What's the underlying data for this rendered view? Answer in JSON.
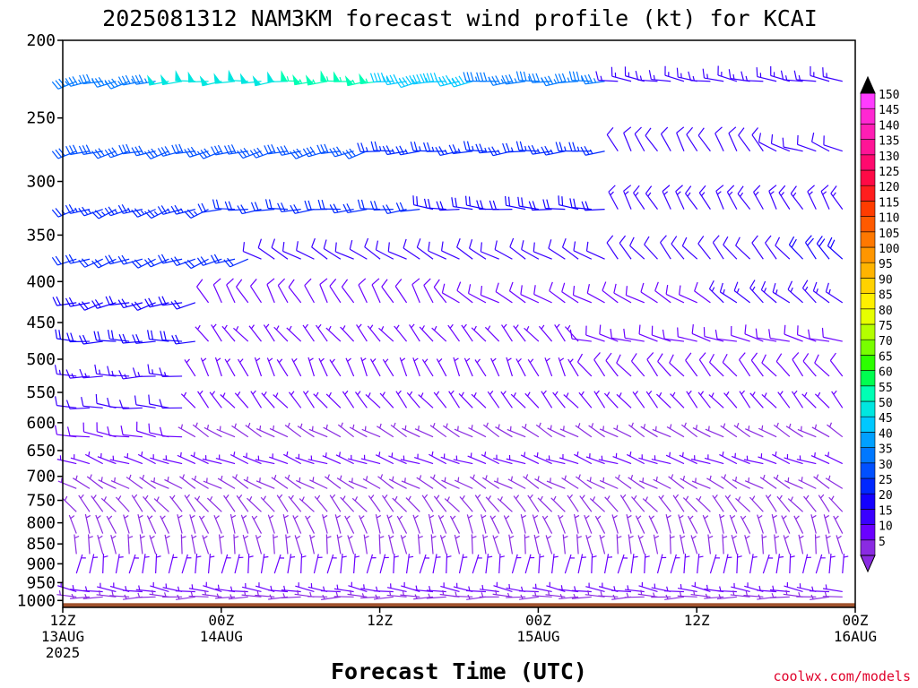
{
  "chart_data": {
    "type": "wind_barb_profile",
    "title": "2025081312 NAM3KM forecast wind profile (kt) for KCAI",
    "xlabel": "Forecast Time (UTC)",
    "ylabel": "",
    "credit": "coolwx.com/models",
    "y_axis": {
      "unit": "hPa",
      "reversed": true,
      "log_scale": true,
      "range": [
        1020,
        200
      ],
      "ticks": [
        200,
        250,
        300,
        350,
        400,
        450,
        500,
        550,
        600,
        650,
        700,
        750,
        800,
        850,
        900,
        950,
        1000
      ]
    },
    "x_axis": {
      "range_hours": [
        0,
        60
      ],
      "ticks": [
        {
          "hour": 0,
          "line1": "12Z",
          "line2": "13AUG",
          "line3": "2025"
        },
        {
          "hour": 12,
          "line1": "00Z",
          "line2": "14AUG",
          "line3": ""
        },
        {
          "hour": 24,
          "line1": "12Z",
          "line2": "",
          "line3": ""
        },
        {
          "hour": 36,
          "line1": "00Z",
          "line2": "15AUG",
          "line3": ""
        },
        {
          "hour": 48,
          "line1": "12Z",
          "line2": "",
          "line3": ""
        },
        {
          "hour": 60,
          "line1": "00Z",
          "line2": "16AUG",
          "line3": ""
        }
      ]
    },
    "colorbar": {
      "levels": [
        5,
        10,
        15,
        20,
        25,
        30,
        35,
        40,
        45,
        50,
        55,
        60,
        65,
        70,
        75,
        80,
        85,
        90,
        95,
        100,
        105,
        110,
        115,
        120,
        125,
        130,
        135,
        140,
        145,
        150
      ],
      "colors": [
        "#8a2be2",
        "#6a00ff",
        "#3a00ff",
        "#1400ff",
        "#0028ff",
        "#0050ff",
        "#0078ff",
        "#00a0ff",
        "#00c8ff",
        "#00e6e0",
        "#00ffb4",
        "#00ff50",
        "#2cff00",
        "#78ff00",
        "#b4ff00",
        "#e6ff00",
        "#fff000",
        "#ffd200",
        "#ffb400",
        "#ff9600",
        "#ff7800",
        "#ff5a00",
        "#ff3c00",
        "#ff1e1e",
        "#ff0a46",
        "#ff0a6e",
        "#ff1496",
        "#ff1eb4",
        "#ff28d2",
        "#ff3cff"
      ]
    },
    "ground_color": "#a0522d",
    "levels_hpa": [
      225,
      275,
      325,
      375,
      425,
      475,
      525,
      575,
      625,
      675,
      725,
      775,
      825,
      875,
      925,
      975,
      1000
    ],
    "wind_profile": [
      {
        "hpa": 225,
        "segments": [
          {
            "h0": 0,
            "h1": 8,
            "dir": 255,
            "spd": 35
          },
          {
            "h0": 8,
            "h1": 18,
            "dir": 265,
            "spd": 50
          },
          {
            "h0": 18,
            "h1": 25,
            "dir": 265,
            "spd": 55
          },
          {
            "h0": 25,
            "h1": 32,
            "dir": 260,
            "spd": 45
          },
          {
            "h0": 32,
            "h1": 42,
            "dir": 265,
            "spd": 35
          },
          {
            "h0": 42,
            "h1": 61,
            "dir": 280,
            "spd": 15
          }
        ]
      },
      {
        "hpa": 275,
        "segments": [
          {
            "h0": 0,
            "h1": 24,
            "dir": 255,
            "spd": 30
          },
          {
            "h0": 24,
            "h1": 42,
            "dir": 265,
            "spd": 25
          },
          {
            "h0": 42,
            "h1": 54,
            "dir": 330,
            "spd": 12
          },
          {
            "h0": 54,
            "h1": 61,
            "dir": 290,
            "spd": 12
          }
        ]
      },
      {
        "hpa": 325,
        "segments": [
          {
            "h0": 0,
            "h1": 12,
            "dir": 250,
            "spd": 25
          },
          {
            "h0": 12,
            "h1": 28,
            "dir": 265,
            "spd": 22
          },
          {
            "h0": 28,
            "h1": 42,
            "dir": 275,
            "spd": 20
          },
          {
            "h0": 42,
            "h1": 61,
            "dir": 330,
            "spd": 15
          }
        ]
      },
      {
        "hpa": 375,
        "segments": [
          {
            "h0": 0,
            "h1": 15,
            "dir": 250,
            "spd": 22
          },
          {
            "h0": 15,
            "h1": 42,
            "dir": 300,
            "spd": 12
          },
          {
            "h0": 42,
            "h1": 56,
            "dir": 320,
            "spd": 12
          },
          {
            "h0": 56,
            "h1": 61,
            "dir": 320,
            "spd": 18
          }
        ]
      },
      {
        "hpa": 425,
        "segments": [
          {
            "h0": 0,
            "h1": 11,
            "dir": 255,
            "spd": 20
          },
          {
            "h0": 11,
            "h1": 30,
            "dir": 330,
            "spd": 8
          },
          {
            "h0": 30,
            "h1": 50,
            "dir": 300,
            "spd": 10
          },
          {
            "h0": 50,
            "h1": 61,
            "dir": 310,
            "spd": 15
          }
        ]
      },
      {
        "hpa": 475,
        "segments": [
          {
            "h0": 0,
            "h1": 11,
            "dir": 270,
            "spd": 20
          },
          {
            "h0": 11,
            "h1": 40,
            "dir": 320,
            "spd": 7
          },
          {
            "h0": 40,
            "h1": 61,
            "dir": 285,
            "spd": 10
          }
        ]
      },
      {
        "hpa": 525,
        "segments": [
          {
            "h0": 0,
            "h1": 10,
            "dir": 270,
            "spd": 15
          },
          {
            "h0": 10,
            "h1": 40,
            "dir": 335,
            "spd": 6
          },
          {
            "h0": 40,
            "h1": 61,
            "dir": 320,
            "spd": 8
          }
        ]
      },
      {
        "hpa": 575,
        "segments": [
          {
            "h0": 0,
            "h1": 10,
            "dir": 275,
            "spd": 12
          },
          {
            "h0": 10,
            "h1": 61,
            "dir": 320,
            "spd": 6
          }
        ]
      },
      {
        "hpa": 625,
        "segments": [
          {
            "h0": 0,
            "h1": 10,
            "dir": 280,
            "spd": 10
          },
          {
            "h0": 10,
            "h1": 61,
            "dir": 300,
            "spd": 5
          }
        ]
      },
      {
        "hpa": 675,
        "segments": [
          {
            "h0": 0,
            "h1": 61,
            "dir": 290,
            "spd": 6
          }
        ]
      },
      {
        "hpa": 725,
        "segments": [
          {
            "h0": 0,
            "h1": 61,
            "dir": 300,
            "spd": 5
          }
        ]
      },
      {
        "hpa": 775,
        "segments": [
          {
            "h0": 0,
            "h1": 61,
            "dir": 320,
            "spd": 5
          }
        ]
      },
      {
        "hpa": 825,
        "segments": [
          {
            "h0": 0,
            "h1": 61,
            "dir": 340,
            "spd": 4
          }
        ]
      },
      {
        "hpa": 875,
        "segments": [
          {
            "h0": 0,
            "h1": 61,
            "dir": 350,
            "spd": 5
          }
        ]
      },
      {
        "hpa": 925,
        "segments": [
          {
            "h0": 0,
            "h1": 61,
            "dir": 10,
            "spd": 6
          }
        ]
      },
      {
        "hpa": 975,
        "segments": [
          {
            "h0": 0,
            "h1": 61,
            "dir": 280,
            "spd": 6
          }
        ]
      },
      {
        "hpa": 1000,
        "segments": [
          {
            "h0": 0,
            "h1": 61,
            "dir": 270,
            "spd": 5
          }
        ]
      }
    ]
  }
}
